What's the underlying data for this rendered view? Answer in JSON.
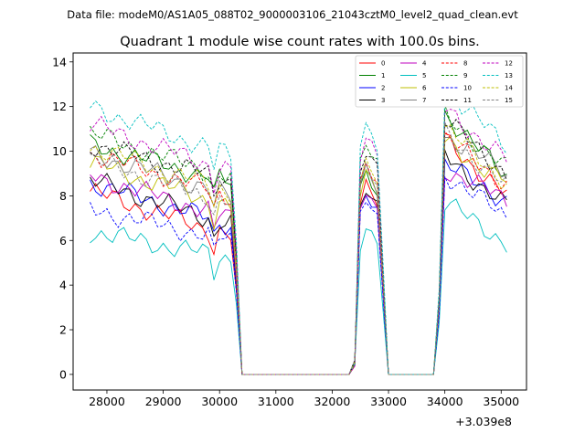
{
  "header": {
    "data_file": "Data file: modeM0/AS1A05_088T02_9000003106_21043cztM0_level2_quad_clean.evt"
  },
  "chart_data": {
    "type": "line",
    "title": "Quadrant 1 module wise count rates with 100.0s bins.",
    "xlabel": "",
    "ylabel": "",
    "x_offset_label": "+3.039e8",
    "xlim": [
      27400,
      35450
    ],
    "ylim": [
      -0.7,
      14.4
    ],
    "xticks": [
      28000,
      29000,
      30000,
      31000,
      32000,
      33000,
      34000,
      35000
    ],
    "yticks": [
      0,
      2,
      4,
      6,
      8,
      10,
      12,
      14
    ],
    "xtick_labels": [
      "28000",
      "29000",
      "30000",
      "31000",
      "32000",
      "33000",
      "34000",
      "35000"
    ],
    "ytick_labels": [
      "0",
      "2",
      "4",
      "6",
      "8",
      "10",
      "12",
      "14"
    ],
    "bin_width": 100,
    "x_start": 27700,
    "legend_position": "upper-right",
    "series": [
      {
        "name": "0",
        "color": "#ff0000",
        "dash": false,
        "level": [
          8.2,
          6.2,
          7.6,
          10.5,
          8.0
        ]
      },
      {
        "name": "1",
        "color": "#008000",
        "dash": false,
        "level": [
          10.3,
          8.6,
          8.2,
          11.7,
          8.8
        ]
      },
      {
        "name": "2",
        "color": "#0000ff",
        "dash": false,
        "level": [
          8.6,
          6.7,
          7.4,
          9.4,
          7.8
        ]
      },
      {
        "name": "3",
        "color": "#000000",
        "dash": false,
        "level": [
          8.7,
          6.7,
          7.4,
          9.8,
          7.5
        ]
      },
      {
        "name": "4",
        "color": "#bf00bf",
        "dash": false,
        "level": [
          8.9,
          7.0,
          7.4,
          9.2,
          7.8
        ]
      },
      {
        "name": "5",
        "color": "#00bfbf",
        "dash": false,
        "level": [
          6.4,
          5.2,
          5.9,
          7.7,
          5.9
        ]
      },
      {
        "name": "6",
        "color": "#bfbf00",
        "dash": false,
        "level": [
          9.5,
          7.5,
          8.1,
          10.4,
          8.6
        ]
      },
      {
        "name": "7",
        "color": "#808080",
        "dash": false,
        "level": [
          9.9,
          8.0,
          8.4,
          10.7,
          9.0
        ]
      },
      {
        "name": "8",
        "color": "#ff0000",
        "dash": true,
        "level": [
          9.9,
          8.0,
          8.7,
          10.6,
          8.5
        ]
      },
      {
        "name": "9",
        "color": "#008000",
        "dash": true,
        "level": [
          10.8,
          8.8,
          9.4,
          11.6,
          9.2
        ]
      },
      {
        "name": "10",
        "color": "#0000ff",
        "dash": true,
        "level": [
          7.4,
          6.0,
          7.1,
          9.0,
          7.0
        ]
      },
      {
        "name": "11",
        "color": "#000000",
        "dash": true,
        "level": [
          10.3,
          8.7,
          9.3,
          11.4,
          9.0
        ]
      },
      {
        "name": "12",
        "color": "#bf00bf",
        "dash": true,
        "level": [
          11.2,
          9.1,
          9.7,
          11.9,
          9.6
        ]
      },
      {
        "name": "13",
        "color": "#00bfbf",
        "dash": true,
        "level": [
          12.0,
          9.8,
          10.3,
          12.8,
          10.2
        ]
      },
      {
        "name": "14",
        "color": "#bfbf00",
        "dash": true,
        "level": [
          10.2,
          8.2,
          8.8,
          11.0,
          8.6
        ]
      },
      {
        "name": "15",
        "color": "#808080",
        "dash": true,
        "level": [
          9.6,
          7.7,
          8.4,
          10.8,
          8.4
        ]
      }
    ]
  }
}
